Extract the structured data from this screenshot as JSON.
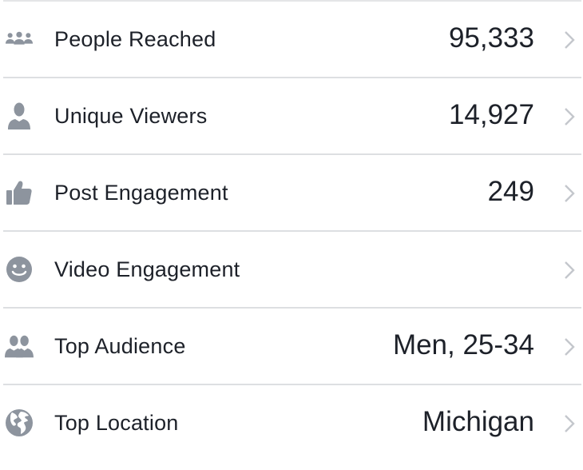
{
  "rows": [
    {
      "label": "People Reached",
      "value": "95,333",
      "icon": "group-icon"
    },
    {
      "label": "Unique Viewers",
      "value": "14,927",
      "icon": "person-icon"
    },
    {
      "label": "Post Engagement",
      "value": "249",
      "icon": "thumbs-up-icon"
    },
    {
      "label": "Video Engagement",
      "value": "",
      "icon": "smiley-icon"
    },
    {
      "label": "Top Audience",
      "value": "Men, 25-34",
      "icon": "two-people-icon"
    },
    {
      "label": "Top Location",
      "value": "Michigan",
      "icon": "globe-icon"
    }
  ],
  "colors": {
    "icon": "#8d949e",
    "chevron": "#c4c7cc",
    "divider": "#dddfe2",
    "text": "#1d2129"
  }
}
